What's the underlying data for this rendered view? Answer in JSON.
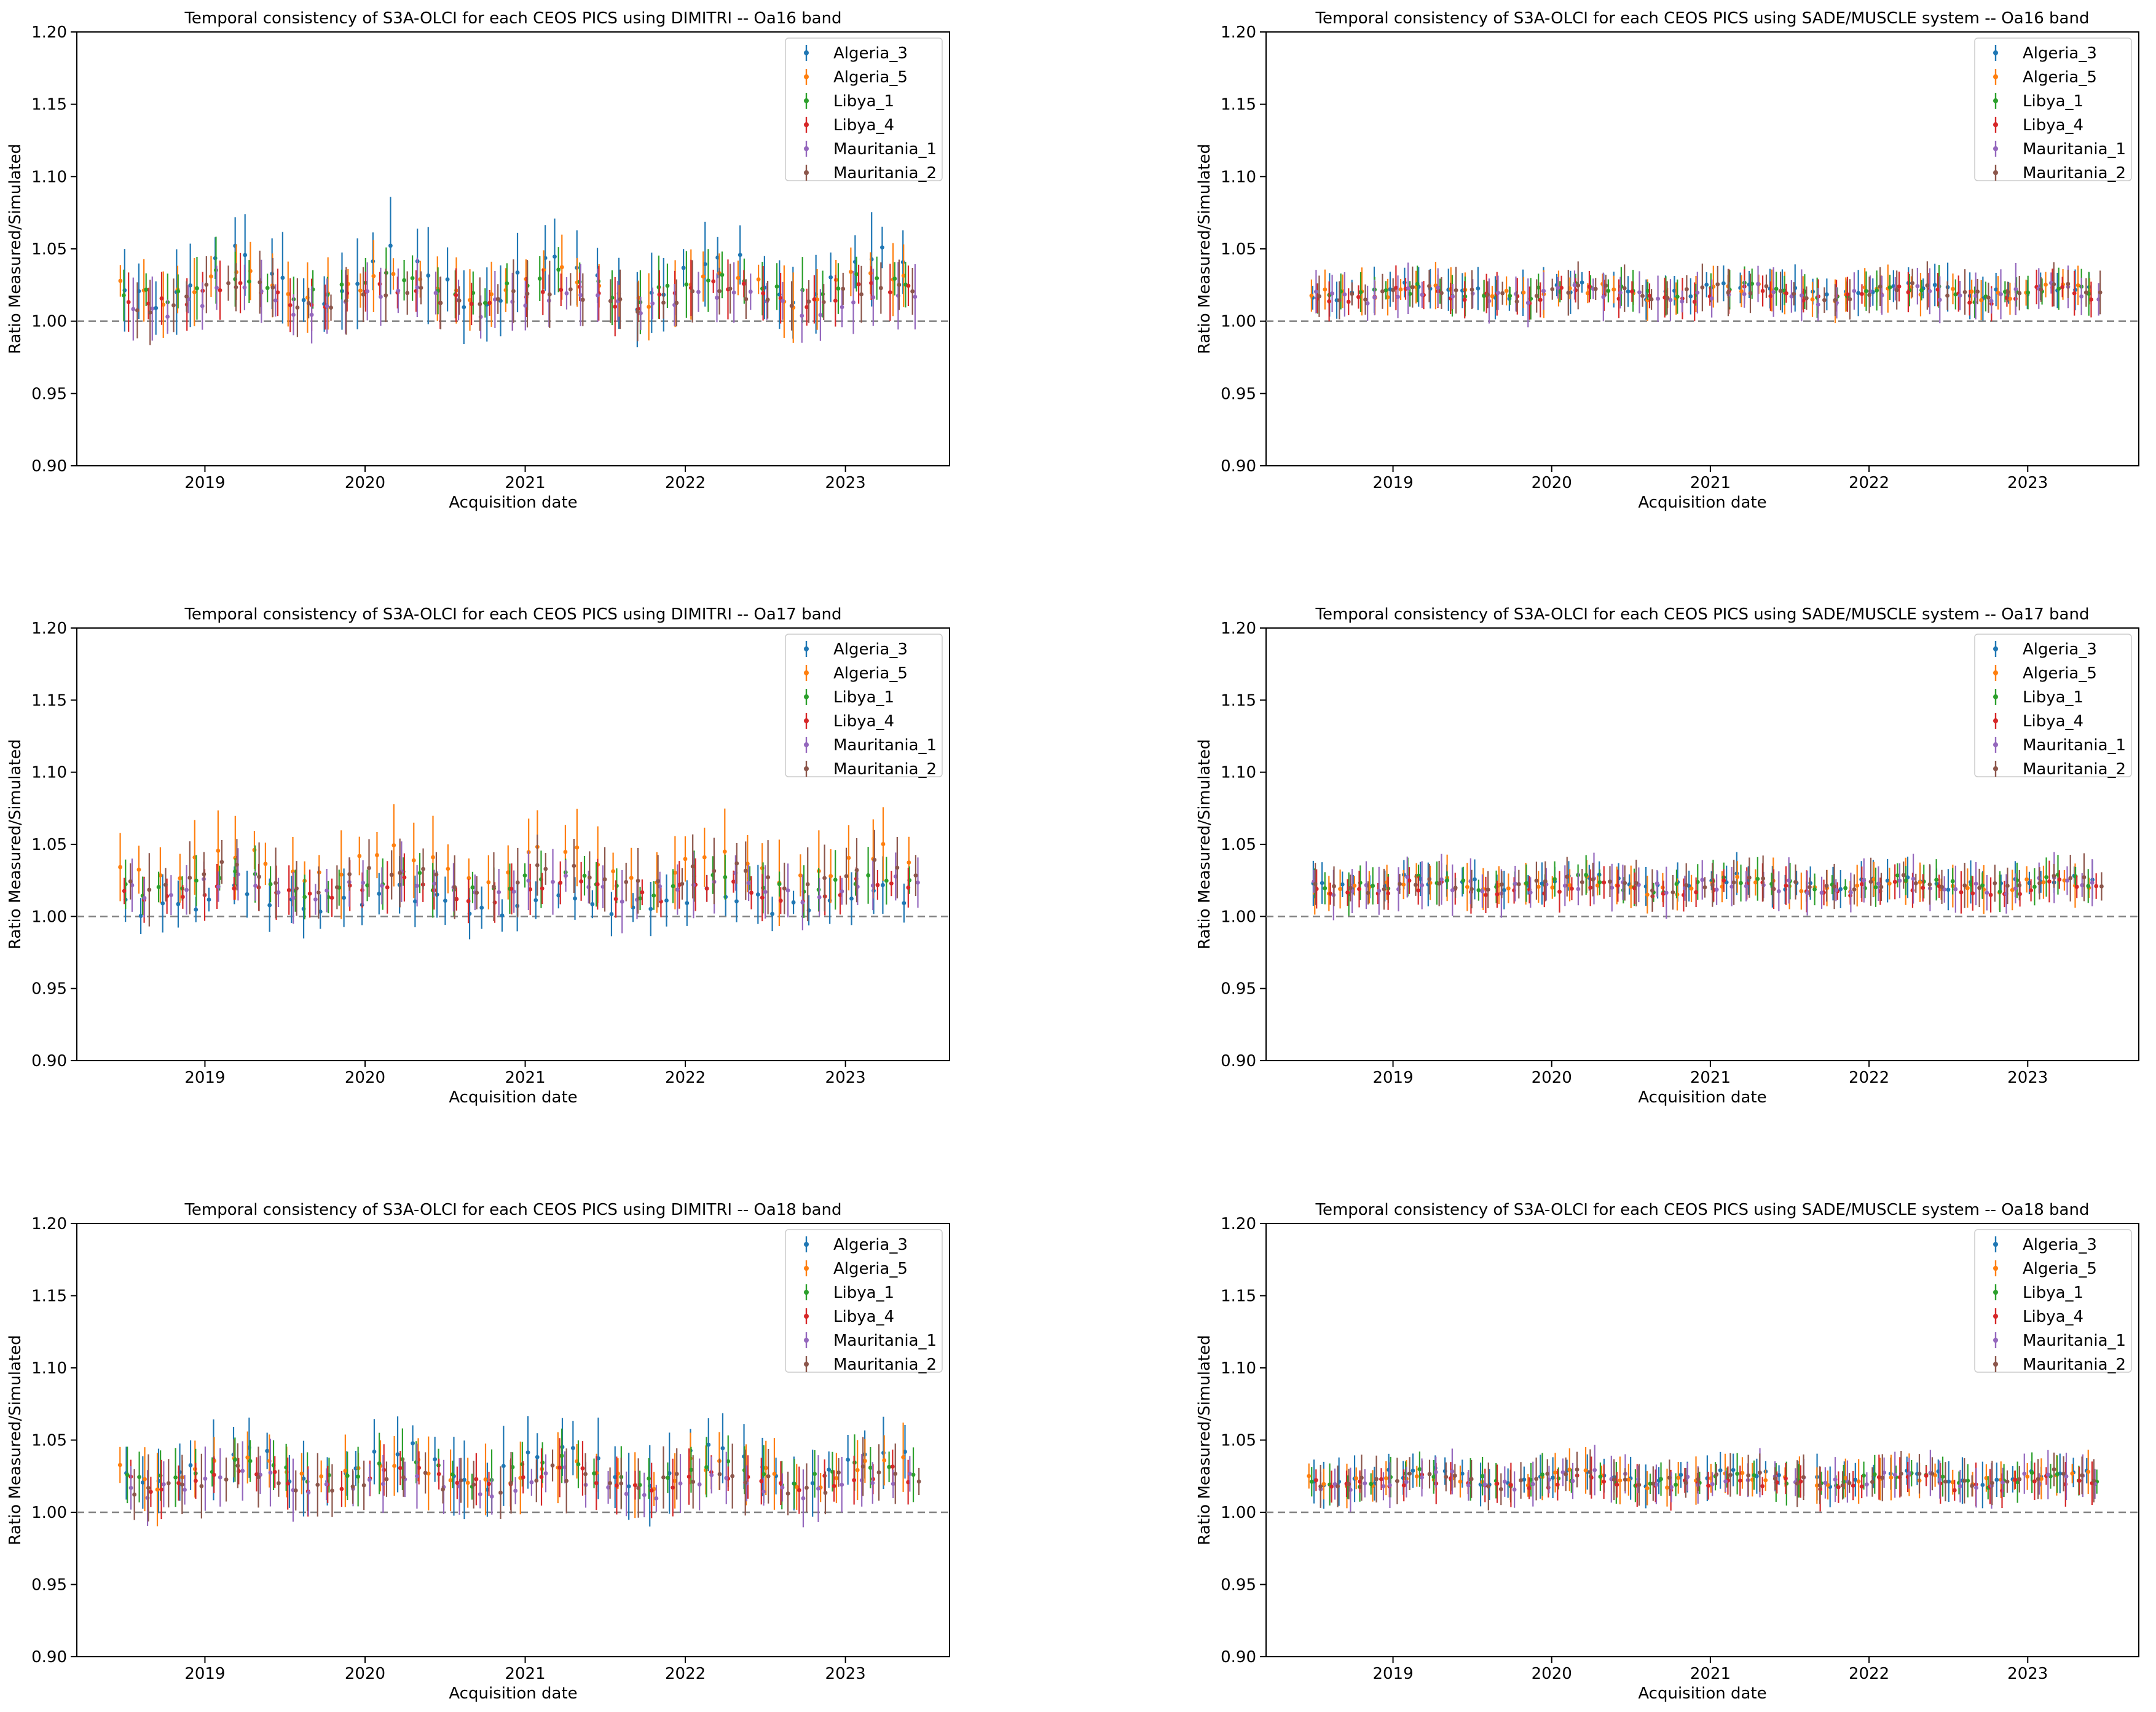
{
  "colors": {
    "Algeria_3": "#1f77b4",
    "Algeria_5": "#ff7f0e",
    "Libya_1": "#2ca02c",
    "Libya_4": "#d62728",
    "Mauritania_1": "#9467bd",
    "Mauritania_2": "#8c564b"
  },
  "chart_data": [
    {
      "type": "scatter",
      "panel": "dimitri_oa16",
      "title": "Temporal consistency of S3A-OLCI for each CEOS PICS using DIMITRI -- Oa16 band",
      "xlabel": "Acquisition date",
      "ylabel": "Ratio Measured/Simulated",
      "ylim": [
        0.9,
        1.2
      ],
      "xlim": [
        2018.2,
        2023.65
      ],
      "yticks": [
        "0.90",
        "0.95",
        "1.00",
        "1.05",
        "1.10",
        "1.15",
        "1.20"
      ],
      "xticks": [
        "2019",
        "2020",
        "2021",
        "2022",
        "2023"
      ],
      "reference_line": 1.0,
      "legend": [
        "Algeria_3",
        "Algeria_5",
        "Libya_1",
        "Libya_4",
        "Mauritania_1",
        "Mauritania_2"
      ],
      "legend_loc": "upper right",
      "x_range": [
        2018.45,
        2023.45
      ],
      "points_per_series": 44,
      "series": [
        {
          "name": "Algeria_3",
          "mean": 1.03,
          "seasonal_amp": 0.017,
          "noise": 0.006,
          "err": 0.026
        },
        {
          "name": "Algeria_5",
          "mean": 1.024,
          "seasonal_amp": 0.01,
          "noise": 0.006,
          "err": 0.02
        },
        {
          "name": "Libya_1",
          "mean": 1.025,
          "seasonal_amp": 0.008,
          "noise": 0.005,
          "err": 0.018
        },
        {
          "name": "Libya_4",
          "mean": 1.018,
          "seasonal_amp": 0.006,
          "noise": 0.005,
          "err": 0.016
        },
        {
          "name": "Mauritania_1",
          "mean": 1.014,
          "seasonal_amp": 0.006,
          "noise": 0.006,
          "err": 0.018
        },
        {
          "name": "Mauritania_2",
          "mean": 1.017,
          "seasonal_amp": 0.007,
          "noise": 0.006,
          "err": 0.018
        }
      ]
    },
    {
      "type": "scatter",
      "panel": "sade_oa16",
      "title": "Temporal consistency of S3A-OLCI for each CEOS PICS using SADE/MUSCLE system -- Oa16 band",
      "xlabel": "Acquisition date",
      "ylabel": "Ratio Measured/Simulated",
      "ylim": [
        0.9,
        1.2
      ],
      "xlim": [
        2018.2,
        2023.7
      ],
      "yticks": [
        "0.90",
        "0.95",
        "1.00",
        "1.05",
        "1.10",
        "1.15",
        "1.20"
      ],
      "xticks": [
        "2019",
        "2020",
        "2021",
        "2022",
        "2023"
      ],
      "reference_line": 1.0,
      "legend": [
        "Algeria_3",
        "Algeria_5",
        "Libya_1",
        "Libya_4",
        "Mauritania_1",
        "Mauritania_2"
      ],
      "legend_loc": "upper right",
      "x_range": [
        2018.45,
        2023.45
      ],
      "points_per_series": 52,
      "series": [
        {
          "name": "Algeria_3",
          "mean": 1.021,
          "seasonal_amp": 0.003,
          "noise": 0.004,
          "err": 0.013
        },
        {
          "name": "Algeria_5",
          "mean": 1.02,
          "seasonal_amp": 0.003,
          "noise": 0.004,
          "err": 0.013
        },
        {
          "name": "Libya_1",
          "mean": 1.02,
          "seasonal_amp": 0.003,
          "noise": 0.004,
          "err": 0.012
        },
        {
          "name": "Libya_4",
          "mean": 1.018,
          "seasonal_amp": 0.003,
          "noise": 0.004,
          "err": 0.012
        },
        {
          "name": "Mauritania_1",
          "mean": 1.019,
          "seasonal_amp": 0.003,
          "noise": 0.005,
          "err": 0.014
        },
        {
          "name": "Mauritania_2",
          "mean": 1.02,
          "seasonal_amp": 0.003,
          "noise": 0.004,
          "err": 0.013
        }
      ]
    },
    {
      "type": "scatter",
      "panel": "dimitri_oa17",
      "title": "Temporal consistency of S3A-OLCI for each CEOS PICS using DIMITRI -- Oa17 band",
      "xlabel": "Acquisition date",
      "ylabel": "Ratio Measured/Simulated",
      "ylim": [
        0.9,
        1.2
      ],
      "xlim": [
        2018.2,
        2023.65
      ],
      "yticks": [
        "0.90",
        "0.95",
        "1.00",
        "1.05",
        "1.10",
        "1.15",
        "1.20"
      ],
      "xticks": [
        "2019",
        "2020",
        "2021",
        "2022",
        "2023"
      ],
      "reference_line": 1.0,
      "legend": [
        "Algeria_3",
        "Algeria_5",
        "Libya_1",
        "Libya_4",
        "Mauritania_1",
        "Mauritania_2"
      ],
      "legend_loc": "upper right",
      "x_range": [
        2018.45,
        2023.45
      ],
      "points_per_series": 44,
      "series": [
        {
          "name": "Algeria_3",
          "mean": 1.01,
          "seasonal_amp": 0.006,
          "noise": 0.006,
          "err": 0.016
        },
        {
          "name": "Algeria_5",
          "mean": 1.036,
          "seasonal_amp": 0.01,
          "noise": 0.006,
          "err": 0.024
        },
        {
          "name": "Libya_1",
          "mean": 1.022,
          "seasonal_amp": 0.006,
          "noise": 0.005,
          "err": 0.016
        },
        {
          "name": "Libya_4",
          "mean": 1.018,
          "seasonal_amp": 0.005,
          "noise": 0.005,
          "err": 0.015
        },
        {
          "name": "Mauritania_1",
          "mean": 1.02,
          "seasonal_amp": 0.006,
          "noise": 0.006,
          "err": 0.018
        },
        {
          "name": "Mauritania_2",
          "mean": 1.027,
          "seasonal_amp": 0.007,
          "noise": 0.006,
          "err": 0.02
        }
      ]
    },
    {
      "type": "scatter",
      "panel": "sade_oa17",
      "title": "Temporal consistency of S3A-OLCI for each CEOS PICS using SADE/MUSCLE system -- Oa17 band",
      "xlabel": "Acquisition date",
      "ylabel": "Ratio Measured/Simulated",
      "ylim": [
        0.9,
        1.2
      ],
      "xlim": [
        2018.2,
        2023.7
      ],
      "yticks": [
        "0.90",
        "0.95",
        "1.00",
        "1.05",
        "1.10",
        "1.15",
        "1.20"
      ],
      "xticks": [
        "2019",
        "2020",
        "2021",
        "2022",
        "2023"
      ],
      "reference_line": 1.0,
      "legend": [
        "Algeria_3",
        "Algeria_5",
        "Libya_1",
        "Libya_4",
        "Mauritania_1",
        "Mauritania_2"
      ],
      "legend_loc": "upper right",
      "x_range": [
        2018.45,
        2023.45
      ],
      "points_per_series": 52,
      "series": [
        {
          "name": "Algeria_3",
          "mean": 1.023,
          "seasonal_amp": 0.003,
          "noise": 0.004,
          "err": 0.012
        },
        {
          "name": "Algeria_5",
          "mean": 1.021,
          "seasonal_amp": 0.003,
          "noise": 0.004,
          "err": 0.013
        },
        {
          "name": "Libya_1",
          "mean": 1.022,
          "seasonal_amp": 0.003,
          "noise": 0.004,
          "err": 0.012
        },
        {
          "name": "Libya_4",
          "mean": 1.019,
          "seasonal_amp": 0.003,
          "noise": 0.004,
          "err": 0.012
        },
        {
          "name": "Mauritania_1",
          "mean": 1.021,
          "seasonal_amp": 0.003,
          "noise": 0.005,
          "err": 0.014
        },
        {
          "name": "Mauritania_2",
          "mean": 1.022,
          "seasonal_amp": 0.003,
          "noise": 0.004,
          "err": 0.013
        }
      ]
    },
    {
      "type": "scatter",
      "panel": "dimitri_oa18",
      "title": "Temporal consistency of S3A-OLCI for each CEOS PICS using DIMITRI -- Oa18 band",
      "xlabel": "Acquisition date",
      "ylabel": "Ratio Measured/Simulated",
      "ylim": [
        0.9,
        1.2
      ],
      "xlim": [
        2018.2,
        2023.65
      ],
      "yticks": [
        "0.90",
        "0.95",
        "1.00",
        "1.05",
        "1.10",
        "1.15",
        "1.20"
      ],
      "xticks": [
        "2019",
        "2020",
        "2021",
        "2022",
        "2023"
      ],
      "reference_line": 1.0,
      "legend": [
        "Algeria_3",
        "Algeria_5",
        "Libya_1",
        "Libya_4",
        "Mauritania_1",
        "Mauritania_2"
      ],
      "legend_loc": "upper right",
      "x_range": [
        2018.45,
        2023.45
      ],
      "points_per_series": 44,
      "series": [
        {
          "name": "Algeria_3",
          "mean": 1.033,
          "seasonal_amp": 0.013,
          "noise": 0.006,
          "err": 0.022
        },
        {
          "name": "Algeria_5",
          "mean": 1.028,
          "seasonal_amp": 0.008,
          "noise": 0.006,
          "err": 0.02
        },
        {
          "name": "Libya_1",
          "mean": 1.029,
          "seasonal_amp": 0.007,
          "noise": 0.005,
          "err": 0.017
        },
        {
          "name": "Libya_4",
          "mean": 1.023,
          "seasonal_amp": 0.005,
          "noise": 0.005,
          "err": 0.016
        },
        {
          "name": "Mauritania_1",
          "mean": 1.02,
          "seasonal_amp": 0.006,
          "noise": 0.006,
          "err": 0.018
        },
        {
          "name": "Mauritania_2",
          "mean": 1.022,
          "seasonal_amp": 0.006,
          "noise": 0.006,
          "err": 0.018
        }
      ]
    },
    {
      "type": "scatter",
      "panel": "sade_oa18",
      "title": "Temporal consistency of S3A-OLCI for each CEOS PICS using SADE/MUSCLE system -- Oa18 band",
      "xlabel": "Acquisition date",
      "ylabel": "Ratio Measured/Simulated",
      "ylim": [
        0.9,
        1.2
      ],
      "xlim": [
        2018.2,
        2023.7
      ],
      "yticks": [
        "0.90",
        "0.95",
        "1.00",
        "1.05",
        "1.10",
        "1.15",
        "1.20"
      ],
      "xticks": [
        "2019",
        "2020",
        "2021",
        "2022",
        "2023"
      ],
      "reference_line": 1.0,
      "legend": [
        "Algeria_3",
        "Algeria_5",
        "Libya_1",
        "Libya_4",
        "Mauritania_1",
        "Mauritania_2"
      ],
      "legend_loc": "upper right",
      "x_range": [
        2018.45,
        2023.45
      ],
      "points_per_series": 52,
      "series": [
        {
          "name": "Algeria_3",
          "mean": 1.025,
          "seasonal_amp": 0.004,
          "noise": 0.004,
          "err": 0.013
        },
        {
          "name": "Algeria_5",
          "mean": 1.023,
          "seasonal_amp": 0.003,
          "noise": 0.004,
          "err": 0.013
        },
        {
          "name": "Libya_1",
          "mean": 1.023,
          "seasonal_amp": 0.003,
          "noise": 0.004,
          "err": 0.012
        },
        {
          "name": "Libya_4",
          "mean": 1.02,
          "seasonal_amp": 0.003,
          "noise": 0.004,
          "err": 0.012
        },
        {
          "name": "Mauritania_1",
          "mean": 1.022,
          "seasonal_amp": 0.003,
          "noise": 0.005,
          "err": 0.014
        },
        {
          "name": "Mauritania_2",
          "mean": 1.023,
          "seasonal_amp": 0.003,
          "noise": 0.004,
          "err": 0.013
        }
      ]
    }
  ]
}
